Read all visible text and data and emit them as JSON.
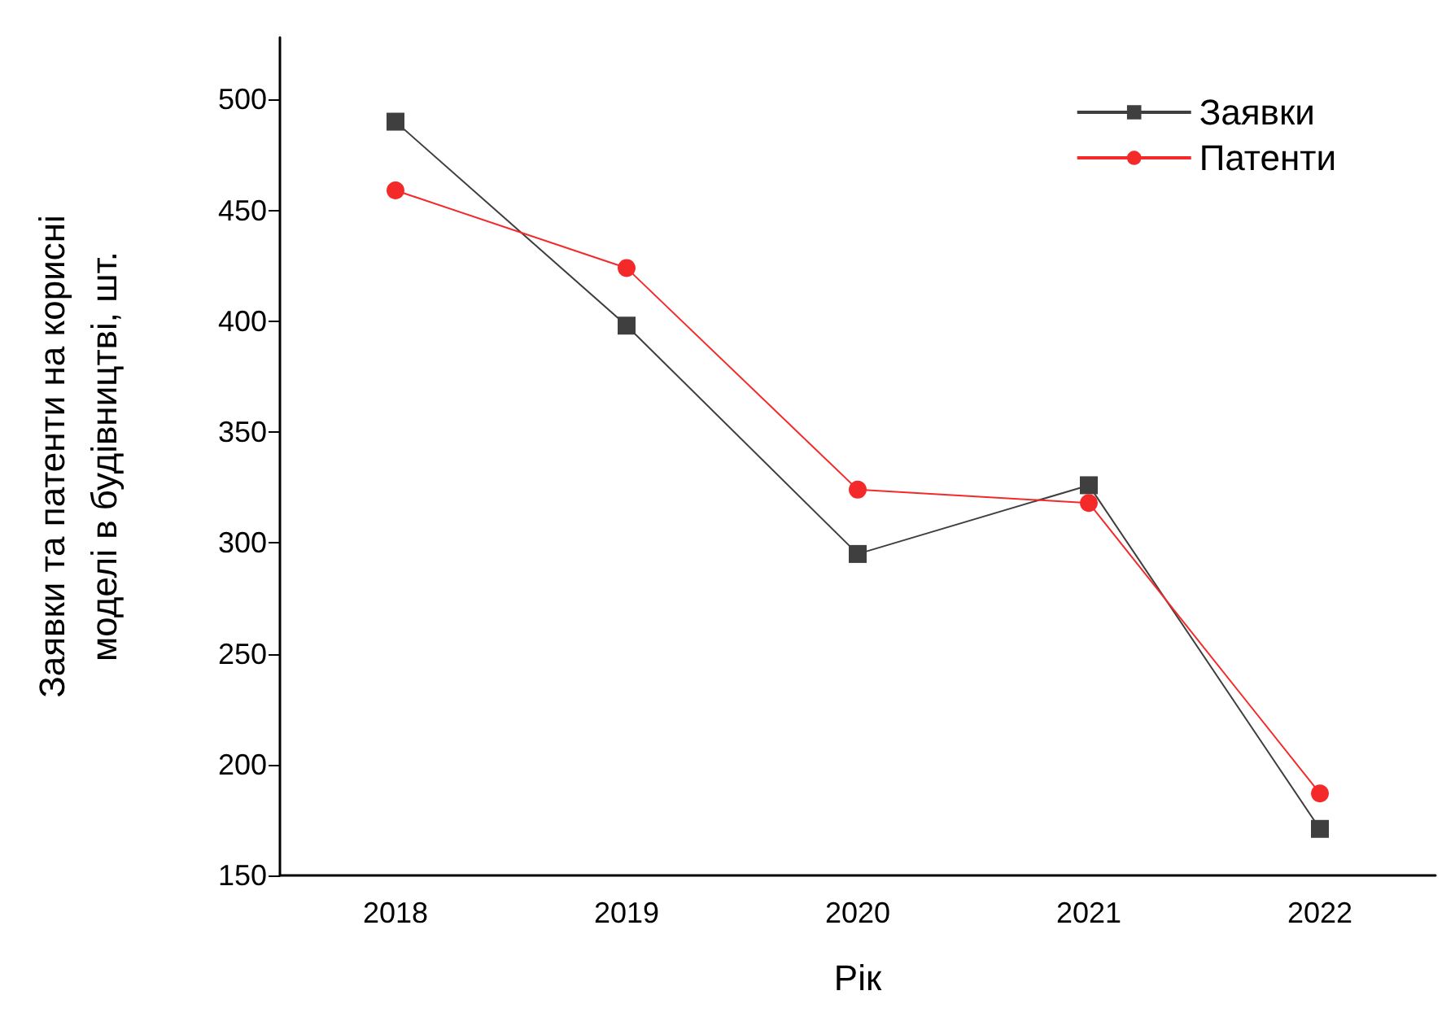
{
  "chart_data": {
    "type": "line",
    "xlabel": "Рік",
    "ylabel": "Заявки та патенти на корисні\nмоделі в будівництві, шт.",
    "categories": [
      "2018",
      "2019",
      "2020",
      "2021",
      "2022"
    ],
    "ylim": [
      150,
      528
    ],
    "yticks": [
      150,
      200,
      250,
      300,
      350,
      400,
      450,
      500
    ],
    "grid": false,
    "legend": "top right",
    "series": [
      {
        "name": "Заявки",
        "color": "#3f3f3f",
        "marker": "square",
        "values": [
          490,
          398,
          295,
          326,
          171
        ]
      },
      {
        "name": "Патенти",
        "color": "#f42a2a",
        "marker": "circle",
        "values": [
          459,
          424,
          324,
          318,
          187
        ]
      }
    ]
  }
}
